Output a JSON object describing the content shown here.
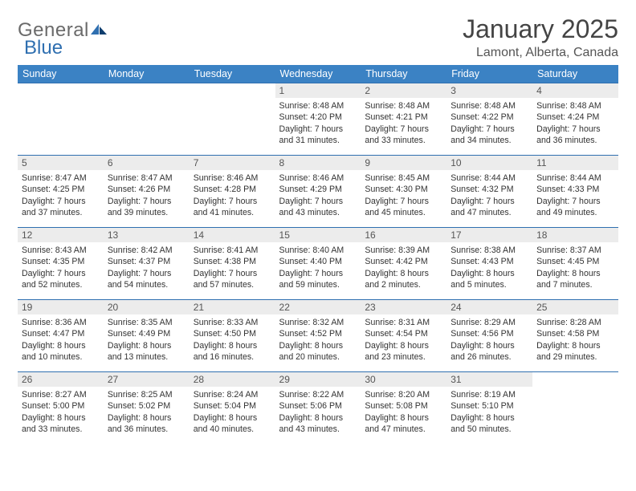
{
  "logo": {
    "text_a": "General",
    "text_b": "Blue"
  },
  "title": "January 2025",
  "location": "Lamont, Alberta, Canada",
  "colors": {
    "header_bg": "#3b82c4",
    "header_text": "#ffffff",
    "rule": "#2f6fb0",
    "daynum_bg": "#ececec",
    "body_text": "#333333",
    "logo_gray": "#6a6a6a",
    "logo_blue": "#2f6fb0"
  },
  "weekdays": [
    "Sunday",
    "Monday",
    "Tuesday",
    "Wednesday",
    "Thursday",
    "Friday",
    "Saturday"
  ],
  "weeks": [
    [
      null,
      null,
      null,
      {
        "n": "1",
        "sr": "Sunrise: 8:48 AM",
        "ss": "Sunset: 4:20 PM",
        "d1": "Daylight: 7 hours",
        "d2": "and 31 minutes."
      },
      {
        "n": "2",
        "sr": "Sunrise: 8:48 AM",
        "ss": "Sunset: 4:21 PM",
        "d1": "Daylight: 7 hours",
        "d2": "and 33 minutes."
      },
      {
        "n": "3",
        "sr": "Sunrise: 8:48 AM",
        "ss": "Sunset: 4:22 PM",
        "d1": "Daylight: 7 hours",
        "d2": "and 34 minutes."
      },
      {
        "n": "4",
        "sr": "Sunrise: 8:48 AM",
        "ss": "Sunset: 4:24 PM",
        "d1": "Daylight: 7 hours",
        "d2": "and 36 minutes."
      }
    ],
    [
      {
        "n": "5",
        "sr": "Sunrise: 8:47 AM",
        "ss": "Sunset: 4:25 PM",
        "d1": "Daylight: 7 hours",
        "d2": "and 37 minutes."
      },
      {
        "n": "6",
        "sr": "Sunrise: 8:47 AM",
        "ss": "Sunset: 4:26 PM",
        "d1": "Daylight: 7 hours",
        "d2": "and 39 minutes."
      },
      {
        "n": "7",
        "sr": "Sunrise: 8:46 AM",
        "ss": "Sunset: 4:28 PM",
        "d1": "Daylight: 7 hours",
        "d2": "and 41 minutes."
      },
      {
        "n": "8",
        "sr": "Sunrise: 8:46 AM",
        "ss": "Sunset: 4:29 PM",
        "d1": "Daylight: 7 hours",
        "d2": "and 43 minutes."
      },
      {
        "n": "9",
        "sr": "Sunrise: 8:45 AM",
        "ss": "Sunset: 4:30 PM",
        "d1": "Daylight: 7 hours",
        "d2": "and 45 minutes."
      },
      {
        "n": "10",
        "sr": "Sunrise: 8:44 AM",
        "ss": "Sunset: 4:32 PM",
        "d1": "Daylight: 7 hours",
        "d2": "and 47 minutes."
      },
      {
        "n": "11",
        "sr": "Sunrise: 8:44 AM",
        "ss": "Sunset: 4:33 PM",
        "d1": "Daylight: 7 hours",
        "d2": "and 49 minutes."
      }
    ],
    [
      {
        "n": "12",
        "sr": "Sunrise: 8:43 AM",
        "ss": "Sunset: 4:35 PM",
        "d1": "Daylight: 7 hours",
        "d2": "and 52 minutes."
      },
      {
        "n": "13",
        "sr": "Sunrise: 8:42 AM",
        "ss": "Sunset: 4:37 PM",
        "d1": "Daylight: 7 hours",
        "d2": "and 54 minutes."
      },
      {
        "n": "14",
        "sr": "Sunrise: 8:41 AM",
        "ss": "Sunset: 4:38 PM",
        "d1": "Daylight: 7 hours",
        "d2": "and 57 minutes."
      },
      {
        "n": "15",
        "sr": "Sunrise: 8:40 AM",
        "ss": "Sunset: 4:40 PM",
        "d1": "Daylight: 7 hours",
        "d2": "and 59 minutes."
      },
      {
        "n": "16",
        "sr": "Sunrise: 8:39 AM",
        "ss": "Sunset: 4:42 PM",
        "d1": "Daylight: 8 hours",
        "d2": "and 2 minutes."
      },
      {
        "n": "17",
        "sr": "Sunrise: 8:38 AM",
        "ss": "Sunset: 4:43 PM",
        "d1": "Daylight: 8 hours",
        "d2": "and 5 minutes."
      },
      {
        "n": "18",
        "sr": "Sunrise: 8:37 AM",
        "ss": "Sunset: 4:45 PM",
        "d1": "Daylight: 8 hours",
        "d2": "and 7 minutes."
      }
    ],
    [
      {
        "n": "19",
        "sr": "Sunrise: 8:36 AM",
        "ss": "Sunset: 4:47 PM",
        "d1": "Daylight: 8 hours",
        "d2": "and 10 minutes."
      },
      {
        "n": "20",
        "sr": "Sunrise: 8:35 AM",
        "ss": "Sunset: 4:49 PM",
        "d1": "Daylight: 8 hours",
        "d2": "and 13 minutes."
      },
      {
        "n": "21",
        "sr": "Sunrise: 8:33 AM",
        "ss": "Sunset: 4:50 PM",
        "d1": "Daylight: 8 hours",
        "d2": "and 16 minutes."
      },
      {
        "n": "22",
        "sr": "Sunrise: 8:32 AM",
        "ss": "Sunset: 4:52 PM",
        "d1": "Daylight: 8 hours",
        "d2": "and 20 minutes."
      },
      {
        "n": "23",
        "sr": "Sunrise: 8:31 AM",
        "ss": "Sunset: 4:54 PM",
        "d1": "Daylight: 8 hours",
        "d2": "and 23 minutes."
      },
      {
        "n": "24",
        "sr": "Sunrise: 8:29 AM",
        "ss": "Sunset: 4:56 PM",
        "d1": "Daylight: 8 hours",
        "d2": "and 26 minutes."
      },
      {
        "n": "25",
        "sr": "Sunrise: 8:28 AM",
        "ss": "Sunset: 4:58 PM",
        "d1": "Daylight: 8 hours",
        "d2": "and 29 minutes."
      }
    ],
    [
      {
        "n": "26",
        "sr": "Sunrise: 8:27 AM",
        "ss": "Sunset: 5:00 PM",
        "d1": "Daylight: 8 hours",
        "d2": "and 33 minutes."
      },
      {
        "n": "27",
        "sr": "Sunrise: 8:25 AM",
        "ss": "Sunset: 5:02 PM",
        "d1": "Daylight: 8 hours",
        "d2": "and 36 minutes."
      },
      {
        "n": "28",
        "sr": "Sunrise: 8:24 AM",
        "ss": "Sunset: 5:04 PM",
        "d1": "Daylight: 8 hours",
        "d2": "and 40 minutes."
      },
      {
        "n": "29",
        "sr": "Sunrise: 8:22 AM",
        "ss": "Sunset: 5:06 PM",
        "d1": "Daylight: 8 hours",
        "d2": "and 43 minutes."
      },
      {
        "n": "30",
        "sr": "Sunrise: 8:20 AM",
        "ss": "Sunset: 5:08 PM",
        "d1": "Daylight: 8 hours",
        "d2": "and 47 minutes."
      },
      {
        "n": "31",
        "sr": "Sunrise: 8:19 AM",
        "ss": "Sunset: 5:10 PM",
        "d1": "Daylight: 8 hours",
        "d2": "and 50 minutes."
      },
      null
    ]
  ]
}
